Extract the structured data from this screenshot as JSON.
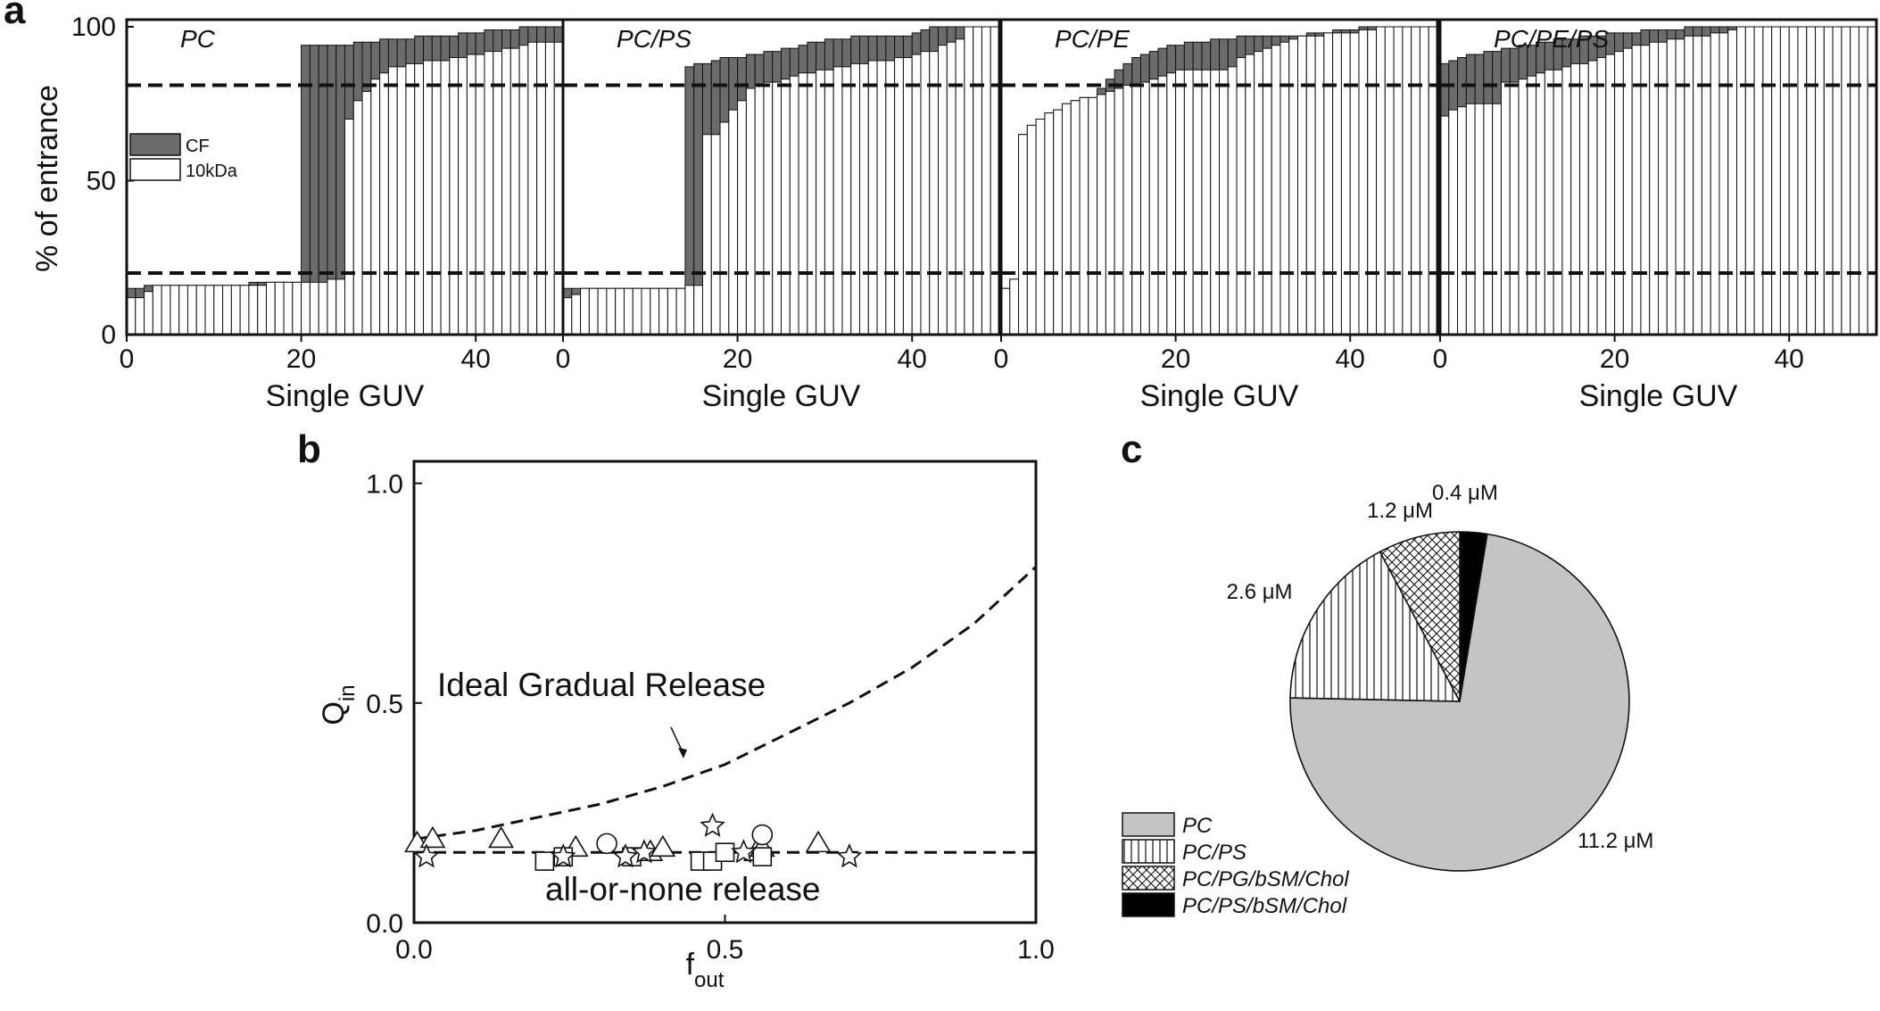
{
  "panels": {
    "a": {
      "letter": "a"
    },
    "b": {
      "letter": "b"
    },
    "c": {
      "letter": "c"
    }
  },
  "colors": {
    "cf": "#6b6b6b",
    "dye10k": "#ffffff",
    "pc_slice": "#c4c4c4",
    "ink": "#111111"
  },
  "chart_data": [
    {
      "id": "a",
      "type": "bar",
      "stacked": true,
      "ylabel": "% of entrance",
      "ylim": [
        0,
        100
      ],
      "yticks": [
        0,
        50,
        100
      ],
      "reference_lines_y": [
        20,
        81
      ],
      "legend": {
        "placement": "upper-left of first subpanel",
        "entries": [
          "CF",
          "10kDa"
        ]
      },
      "subpanels": [
        {
          "title": "PC",
          "xlabel": "Single GUV",
          "xlim": [
            0,
            50
          ],
          "xticks": [
            0,
            20,
            40
          ],
          "dye10k": [
            12,
            12,
            14,
            16,
            16,
            16,
            16,
            16,
            16,
            16,
            16,
            16,
            16,
            16,
            16,
            16,
            17,
            17,
            17,
            17,
            17,
            17,
            17,
            18,
            18,
            70,
            76,
            79,
            83,
            85,
            87,
            87,
            88,
            88,
            89,
            89,
            89,
            90,
            90,
            91,
            91,
            92,
            92,
            93,
            93,
            94,
            95,
            95,
            95,
            95
          ],
          "cf": [
            15,
            15,
            16,
            16,
            16,
            16,
            16,
            16,
            16,
            16,
            16,
            16,
            16,
            16,
            17,
            17,
            17,
            17,
            17,
            17,
            94,
            94,
            94,
            94,
            94,
            94,
            95,
            95,
            95,
            96,
            96,
            96,
            96,
            97,
            97,
            97,
            97,
            97,
            98,
            98,
            98,
            99,
            99,
            99,
            99,
            100,
            100,
            100,
            100,
            100
          ]
        },
        {
          "title": "PC/PS",
          "xlabel": "Single GUV",
          "xlim": [
            0,
            50
          ],
          "xticks": [
            0,
            20,
            40
          ],
          "dye10k": [
            12,
            13,
            15,
            15,
            15,
            15,
            15,
            15,
            15,
            15,
            15,
            15,
            15,
            15,
            16,
            16,
            65,
            65,
            69,
            73,
            76,
            80,
            81,
            82,
            82,
            83,
            84,
            85,
            85,
            86,
            86,
            87,
            87,
            88,
            88,
            89,
            89,
            89,
            90,
            90,
            91,
            92,
            92,
            94,
            95,
            96,
            100,
            100,
            100,
            100
          ],
          "cf": [
            15,
            15,
            15,
            15,
            15,
            15,
            15,
            15,
            15,
            15,
            15,
            15,
            15,
            15,
            87,
            88,
            88,
            89,
            90,
            90,
            90,
            91,
            91,
            92,
            92,
            93,
            93,
            94,
            95,
            95,
            96,
            96,
            96,
            97,
            97,
            97,
            97,
            97,
            97,
            97,
            98,
            99,
            100,
            100,
            100,
            100,
            100,
            100,
            100,
            100
          ]
        },
        {
          "title": "PC/PE",
          "xlabel": "Single GUV",
          "xlim": [
            0,
            50
          ],
          "xticks": [
            0,
            20,
            40
          ],
          "dye10k": [
            15,
            18,
            65,
            68,
            70,
            72,
            73,
            75,
            76,
            77,
            77,
            78,
            79,
            80,
            81,
            81,
            82,
            83,
            84,
            85,
            86,
            86,
            86,
            86,
            86,
            86,
            87,
            90,
            91,
            92,
            93,
            94,
            95,
            96,
            97,
            97,
            97,
            98,
            98,
            98,
            98,
            99,
            99,
            100,
            100,
            100,
            100,
            100,
            100,
            100
          ],
          "cf": [
            15,
            18,
            65,
            68,
            70,
            72,
            73,
            75,
            76,
            77,
            77,
            80,
            83,
            86,
            88,
            90,
            91,
            92,
            93,
            94,
            94,
            95,
            95,
            95,
            96,
            96,
            96,
            97,
            97,
            97,
            97,
            97,
            97,
            97,
            97,
            98,
            98,
            98,
            99,
            99,
            99,
            100,
            100,
            100,
            100,
            100,
            100,
            100,
            100,
            100
          ]
        },
        {
          "title": "PC/PE/PS",
          "xlabel": "Single GUV",
          "xlim": [
            0,
            50
          ],
          "xticks": [
            0,
            20,
            40
          ],
          "dye10k": [
            71,
            73,
            74,
            75,
            75,
            75,
            75,
            82,
            82,
            83,
            84,
            85,
            86,
            86,
            87,
            88,
            88,
            89,
            90,
            91,
            92,
            93,
            94,
            94,
            95,
            95,
            96,
            96,
            97,
            97,
            97,
            98,
            98,
            99,
            100,
            100,
            100,
            100,
            100,
            100,
            100,
            100,
            100,
            100,
            100,
            100,
            100,
            100,
            100,
            100
          ],
          "cf": [
            88,
            89,
            90,
            91,
            91,
            92,
            92,
            93,
            93,
            94,
            94,
            95,
            95,
            96,
            96,
            96,
            97,
            97,
            97,
            98,
            98,
            98,
            98,
            99,
            99,
            99,
            99,
            99,
            100,
            100,
            100,
            100,
            100,
            100,
            100,
            100,
            100,
            100,
            100,
            100,
            100,
            100,
            100,
            100,
            100,
            100,
            100,
            100,
            100,
            100
          ]
        }
      ]
    },
    {
      "id": "b",
      "type": "scatter",
      "xlabel_main": "f",
      "xlabel_sub": "out",
      "ylabel_main": "Q",
      "ylabel_sub": "in",
      "xlim": [
        0,
        1
      ],
      "ylim": [
        0,
        1.05
      ],
      "xticks": [
        "0.0",
        "0.5",
        "1.0"
      ],
      "yticks": [
        "0.0",
        "0.5",
        "1.0"
      ],
      "annotations": [
        "Ideal Gradual Release",
        "all-or-none release"
      ],
      "curves": [
        {
          "style": "dashed",
          "x": [
            0,
            0.1,
            0.2,
            0.3,
            0.4,
            0.5,
            0.6,
            0.7,
            0.8,
            0.9,
            1.0
          ],
          "y": [
            0.19,
            0.21,
            0.24,
            0.27,
            0.31,
            0.36,
            0.43,
            0.5,
            0.58,
            0.68,
            0.81
          ]
        },
        {
          "style": "dashed",
          "x": [
            0,
            1.0
          ],
          "y": [
            0.16,
            0.16
          ]
        }
      ],
      "series": [
        {
          "marker": "triangle",
          "points": [
            [
              0.005,
              0.18
            ],
            [
              0.03,
              0.19
            ],
            [
              0.14,
              0.19
            ],
            [
              0.26,
              0.17
            ],
            [
              0.38,
              0.16
            ],
            [
              0.4,
              0.17
            ],
            [
              0.55,
              0.16
            ],
            [
              0.56,
              0.17
            ],
            [
              0.65,
              0.18
            ]
          ]
        },
        {
          "marker": "circle",
          "points": [
            [
              0.31,
              0.18
            ],
            [
              0.56,
              0.2
            ]
          ]
        },
        {
          "marker": "square",
          "points": [
            [
              0.21,
              0.14
            ],
            [
              0.24,
              0.15
            ],
            [
              0.35,
              0.15
            ],
            [
              0.46,
              0.14
            ],
            [
              0.48,
              0.14
            ],
            [
              0.5,
              0.16
            ],
            [
              0.56,
              0.15
            ]
          ]
        },
        {
          "marker": "star",
          "points": [
            [
              0.02,
              0.15
            ],
            [
              0.24,
              0.15
            ],
            [
              0.34,
              0.15
            ],
            [
              0.37,
              0.16
            ],
            [
              0.48,
              0.22
            ],
            [
              0.53,
              0.16
            ],
            [
              0.7,
              0.15
            ]
          ]
        }
      ]
    },
    {
      "id": "c",
      "type": "pie",
      "start_angle_deg": 90,
      "direction": "clockwise",
      "slices": [
        {
          "name": "PC",
          "value": 11.2,
          "label": "11.2 μM",
          "fill": "#c4c4c4",
          "pattern": "solid"
        },
        {
          "name": "PC/PS",
          "value": 2.6,
          "label": "2.6 μM",
          "fill": "#ffffff",
          "pattern": "vertical"
        },
        {
          "name": "PC/PG/bSM/Chol",
          "value": 1.2,
          "label": "1.2 μM",
          "fill": "#ffffff",
          "pattern": "crosshatch"
        },
        {
          "name": "PC/PS/bSM/Chol",
          "value": 0.4,
          "label": "0.4 μM",
          "fill": "#000000",
          "pattern": "solid"
        }
      ],
      "legend_placement": "bottom-left",
      "slice_order_clockwise_from_top": [
        "PC/PS/bSM/Chol",
        "PC",
        "PC/PS",
        "PC/PG/bSM/Chol"
      ]
    }
  ]
}
